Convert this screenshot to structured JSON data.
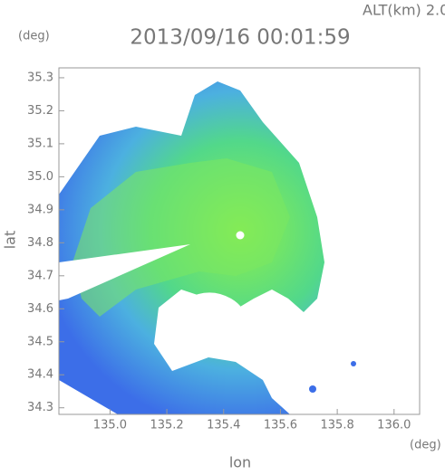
{
  "chart_data": {
    "type": "radar-map",
    "title": "2013/09/16 00:01:59",
    "altitude_label": "ALT(km) 2.0",
    "x_label": "lon",
    "y_label": "lat",
    "x_unit": "(deg)",
    "y_unit": "(deg)",
    "xlim": [
      134.82,
      136.09
    ],
    "xticks": [
      {
        "value": 135,
        "label": "135.0"
      },
      135.2,
      135.4,
      135.6,
      135.8,
      {
        "value": 136,
        "label": "136.0"
      }
    ],
    "ylim": [
      34.28,
      35.33
    ],
    "yticks": [
      34.3,
      34.4,
      34.5,
      34.6,
      34.7,
      34.8,
      34.9,
      {
        "value": 35,
        "label": "35.0"
      },
      35.1,
      35.2,
      35.3
    ]
  }
}
